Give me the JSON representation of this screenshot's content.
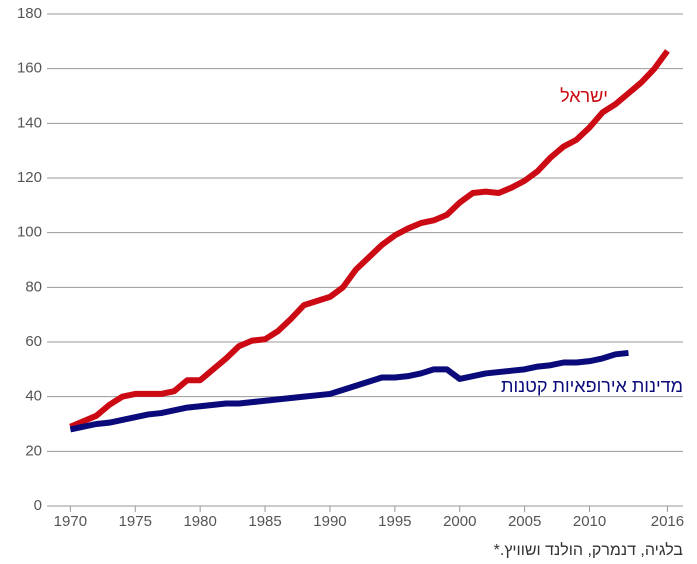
{
  "chart_data": {
    "type": "line",
    "x": [
      1970,
      1971,
      1972,
      1973,
      1974,
      1975,
      1976,
      1977,
      1978,
      1979,
      1980,
      1981,
      1982,
      1983,
      1984,
      1985,
      1986,
      1987,
      1988,
      1989,
      1990,
      1991,
      1992,
      1993,
      1994,
      1995,
      1996,
      1997,
      1998,
      1999,
      2000,
      2001,
      2002,
      2003,
      2004,
      2005,
      2006,
      2007,
      2008,
      2009,
      2010,
      2011,
      2012,
      2013,
      2014,
      2015,
      2016
    ],
    "series": [
      {
        "name": "ישראל",
        "color": "#cc0a14",
        "values": [
          29,
          31,
          33,
          37,
          40,
          41,
          41,
          41,
          42,
          46,
          46,
          50,
          54,
          58.5,
          60.5,
          61,
          64,
          68.5,
          73.5,
          75,
          76.5,
          80,
          86.5,
          91,
          95.5,
          99,
          101.5,
          103.5,
          104.5,
          106.5,
          111,
          114.5,
          115,
          114.5,
          116.5,
          119,
          122.5,
          127.5,
          131.5,
          134,
          138.5,
          144,
          147,
          151,
          155,
          160,
          166.5
        ]
      },
      {
        "name": "מדינות אירופאיות קטנות",
        "color": "#0a0a7a",
        "values": [
          28,
          29,
          30,
          30.5,
          31.5,
          32.5,
          33.5,
          34,
          35,
          36,
          36.5,
          37,
          37.5,
          37.5,
          38,
          38.5,
          39,
          39.5,
          40,
          40.5,
          41,
          42.5,
          44,
          45.5,
          47,
          47,
          47.5,
          48.5,
          50,
          50,
          46.5,
          47.5,
          48.5,
          49,
          49.5,
          50,
          51,
          51.5,
          52.5,
          52.5,
          53,
          54,
          55.5,
          56,
          null,
          null,
          null
        ]
      }
    ],
    "xlim": [
      1968.2,
      2017.2
    ],
    "xticks": [
      1970,
      1975,
      1980,
      1985,
      1990,
      1995,
      2000,
      2005,
      2010,
      2016
    ],
    "ylim": [
      0,
      180
    ],
    "yticks": [
      0,
      20,
      40,
      60,
      80,
      100,
      120,
      140,
      160,
      180
    ],
    "grid": true,
    "footnote": "בלגיה, דנמרק, הולנד ושוויץ.*"
  }
}
